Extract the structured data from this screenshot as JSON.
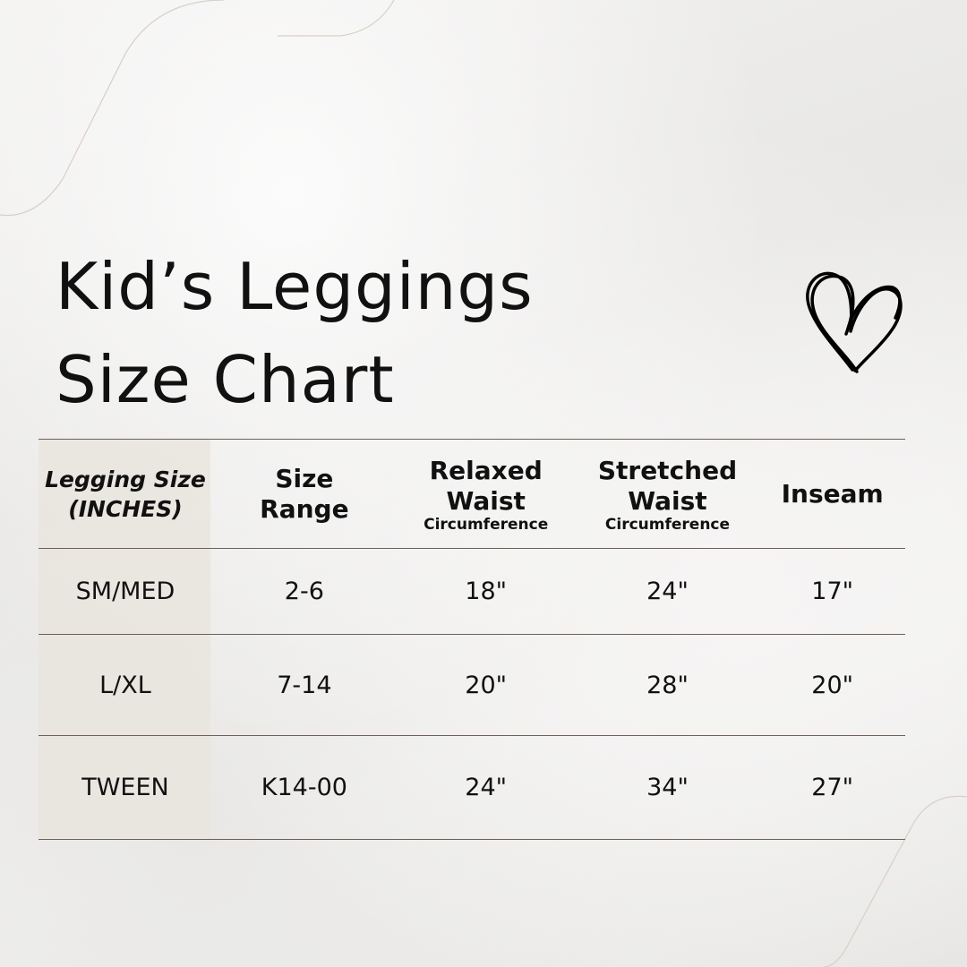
{
  "title": {
    "line1": "Kid’s Leggings",
    "line2": "Size Chart"
  },
  "icons": {
    "heart": "heart-outline-icon"
  },
  "colors": {
    "divider": "#6e6058",
    "first_column_bg": "#e8e4dc",
    "text": "#111111"
  },
  "table": {
    "headers": [
      {
        "line1": "Legging Size",
        "line2": "(INCHES)"
      },
      {
        "line1": "Size",
        "line2": "Range"
      },
      {
        "line1": "Relaxed",
        "line2": "Waist",
        "sub": "Circumference"
      },
      {
        "line1": "Stretched",
        "line2": "Waist",
        "sub": "Circumference"
      },
      {
        "line1": "Inseam"
      }
    ],
    "rows": [
      [
        "SM/MED",
        "2-6",
        "18\"",
        "24\"",
        "17\""
      ],
      [
        "L/XL",
        "7-14",
        "20\"",
        "28\"",
        "20\""
      ],
      [
        "TWEEN",
        "K14-00",
        "24\"",
        "34\"",
        "27\""
      ]
    ]
  }
}
